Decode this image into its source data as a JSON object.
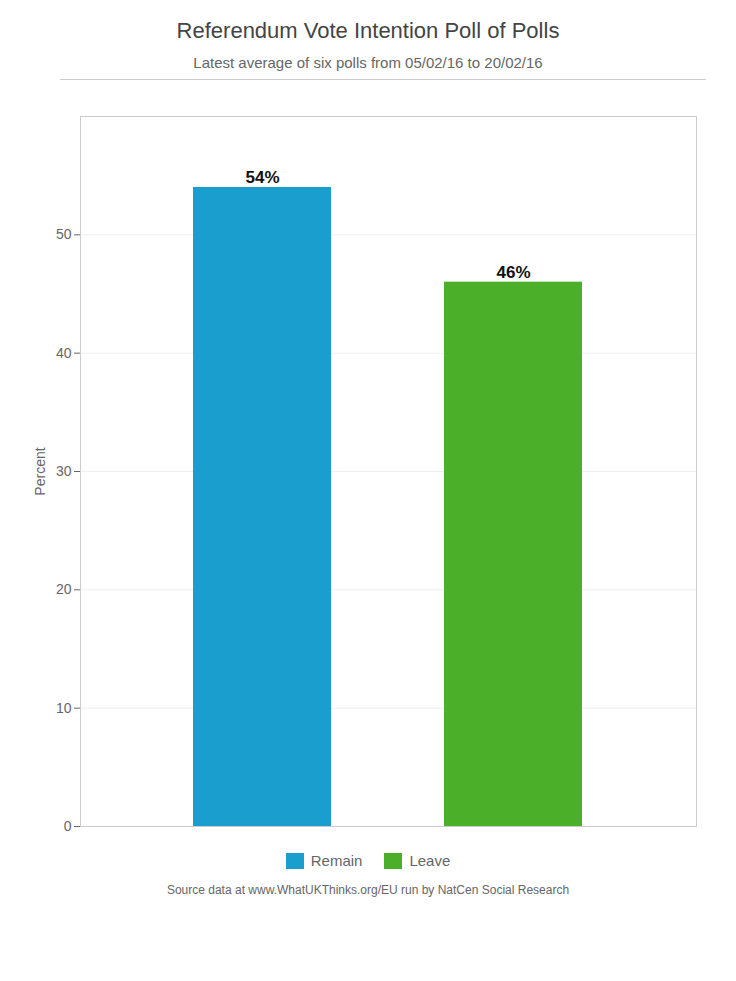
{
  "chart_data": {
    "type": "bar",
    "title": "Referendum Vote Intention Poll of Polls",
    "subtitle": "Latest average of six polls from 05/02/16 to 20/02/16",
    "footnote": "Source data at www.WhatUKThinks.org/EU run by NatCen Social Research",
    "categories": [
      "Remain",
      "Leave"
    ],
    "values": [
      54,
      46
    ],
    "value_labels": [
      "54%",
      "46%"
    ],
    "data_labels": true,
    "colors": [
      "#1a9ece",
      "#4caf2a"
    ],
    "ylabel": "Percent",
    "ylim": [
      0,
      60
    ],
    "yticks": [
      0,
      10,
      20,
      30,
      40,
      50
    ],
    "grid": true,
    "legend": "bottom",
    "tick_labels": "y"
  }
}
